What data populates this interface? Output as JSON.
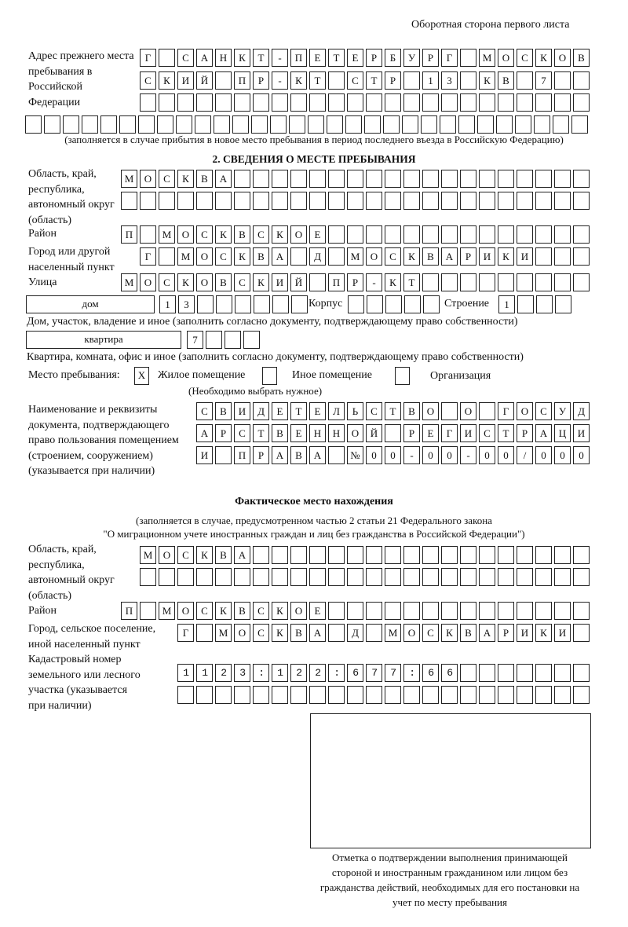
{
  "header": "Оборотная сторона первого листа",
  "previous_address": {
    "label": "Адрес прежнего места пребывания в Российской Федерации",
    "rows": [
      "Г САНКТ-ПЕТЕРБУРГ МОСКОВ",
      "СКИЙ ПР-КТ СТР 13 КВ 7",
      "",
      ""
    ],
    "note": "(заполняется в случае прибытия в новое место пребывания в период последнего въезда в Российскую Федерацию)"
  },
  "section2": {
    "title": "2. СВЕДЕНИЯ О МЕСТЕ ПРЕБЫВАНИЯ",
    "region_label": "Область, край, республика, автономный округ (область)",
    "region": [
      "МОСКВА",
      ""
    ],
    "district_label": "Район",
    "district": "П МОСКВСКОЕ",
    "city_label": "Город или другой населенный пункт",
    "city": "Г МОСКВА Д МОСКВАРИКИ",
    "street_label": "Улица",
    "street": "МОСКОВСКИЙ ПР-КТ",
    "house_type": "дом",
    "house": "13",
    "korpus_label": "Корпус",
    "korpus": "",
    "building_label": "Строение",
    "building": "1",
    "house_note": "Дом, участок, владение и иное (заполнить согласно документу, подтверждающему право собственности)",
    "apt_type": "квартира",
    "apt": "7",
    "apt_note": "Квартира, комната, офис и иное (заполнить согласно документу, подтверждающему право собственности)",
    "stay_label": "Место пребывания:",
    "options": [
      {
        "label": "Жилое помещение",
        "mark": "X"
      },
      {
        "label": "Иное помещение",
        "mark": ""
      },
      {
        "label": "Организация",
        "mark": ""
      }
    ],
    "choose_note": "(Необходимо выбрать нужное)",
    "doc_label": "Наименование и реквизиты документа, подтверждающего право пользования помещением (строением, сооружением) (указывается при наличии)",
    "doc": [
      "СВИДЕТЕЛЬСТВО О ГОСУД",
      "АРСТВЕННОЙ РЕГИСТРАЦИ",
      "И ПРАВА №00-00-00/000"
    ]
  },
  "actual": {
    "title": "Фактическое место нахождения",
    "note1": "(заполняется в случае, предусмотренном частью 2 статьи 21 Федерального закона",
    "note2": "\"О миграционном учете иностранных граждан и лиц без гражданства в Российской Федерации\")",
    "region_label": "Область, край, республика, автономный округ (область)",
    "region": [
      "МОСКВА",
      ""
    ],
    "district_label": "Район",
    "district": "П МОСКВСКОЕ",
    "city_label": "Город, сельское поселение, иной населенный пункт",
    "city": "Г МОСКВА Д МОСКВАРИКИ",
    "cadastral_label": "Кадастровый номер земельного или лесного участка (указывается при наличии)",
    "cadastral": [
      "1123:122:677:66",
      ""
    ]
  },
  "stamp_caption": "Отметка о подтверждении выполнения принимающей стороной и иностранным гражданином или лицом без гражданства действий, необходимых для его постановки на учет по месту пребывания"
}
